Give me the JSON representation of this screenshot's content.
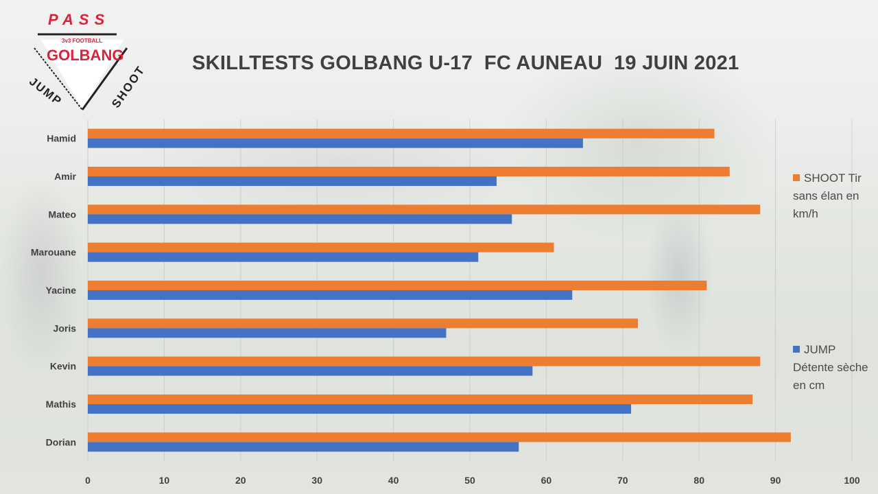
{
  "title": "SKILLTESTS GOLBANG U-17  FC AUNEAU  19 JUIN 2021",
  "logo": {
    "top": "PASS",
    "sub": "3v3 FOOTBALL",
    "main": "GOLBANG",
    "left": "JUMP",
    "right": "SHOOT"
  },
  "chart_data": {
    "type": "bar",
    "orientation": "horizontal",
    "title": "SKILLTESTS GOLBANG U-17  FC AUNEAU  19 JUIN 2021",
    "categories": [
      "Hamid",
      "Amir",
      "Mateo",
      "Marouane",
      "Yacine",
      "Joris",
      "Kevin",
      "Mathis",
      "Dorian"
    ],
    "series": [
      {
        "name": "SHOOT Tir sans élan en km/h",
        "color": "#ed7d31",
        "values": [
          82,
          84,
          88,
          61,
          81,
          72,
          88,
          87,
          92
        ]
      },
      {
        "name": "JUMP Détente sèche en cm",
        "color": "#4472c4",
        "values": [
          64.8,
          53.5,
          55.5,
          51.1,
          63.4,
          46.9,
          58.2,
          71.1,
          56.4
        ]
      }
    ],
    "xlim": [
      0,
      100
    ],
    "xticks": [
      "0",
      "10",
      "20",
      "30",
      "40",
      "50",
      "60",
      "70",
      "80",
      "90",
      "100"
    ],
    "grid": true,
    "legend_position": "right"
  }
}
